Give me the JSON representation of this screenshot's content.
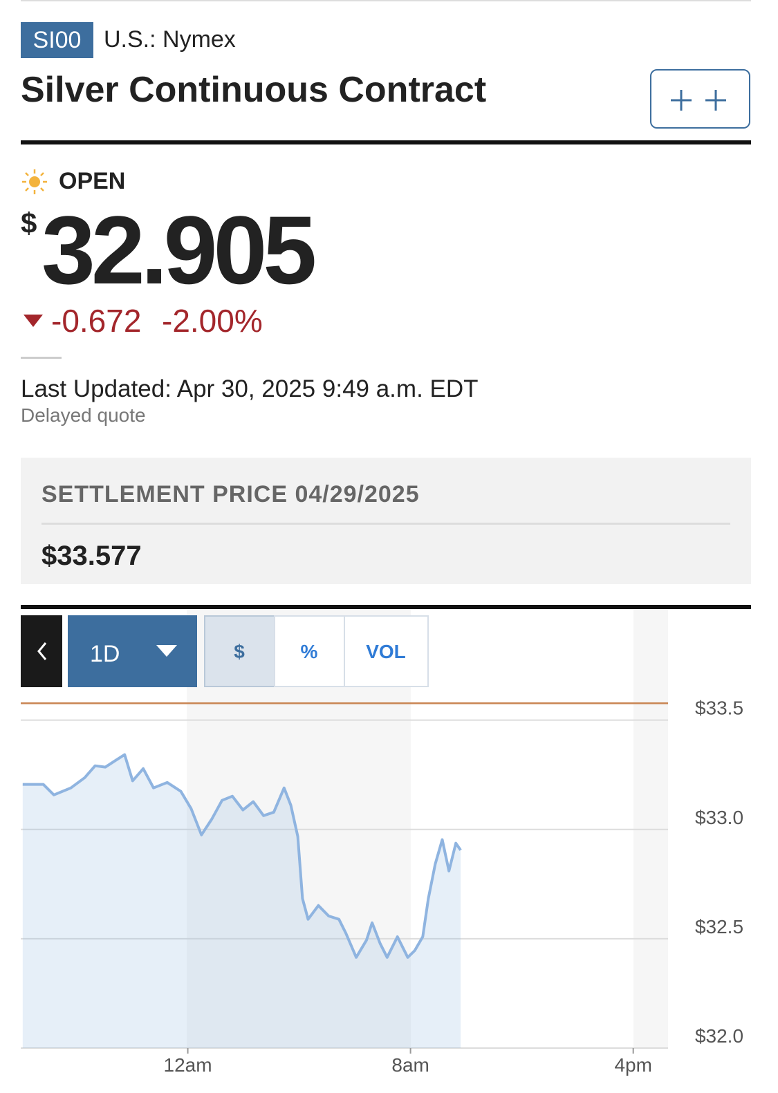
{
  "header": {
    "symbol": "SI00",
    "exchange": "U.S.: Nymex",
    "title": "Silver Continuous Contract"
  },
  "quote": {
    "status": "OPEN",
    "currency": "$",
    "price": "32.905",
    "change": "-0.672",
    "change_percent": "-2.00%",
    "last_updated": "Last Updated: Apr 30, 2025 9:49 a.m. EDT",
    "delay_note": "Delayed quote"
  },
  "settlement": {
    "label": "SETTLEMENT PRICE 04/29/2025",
    "value": "$33.577"
  },
  "controls": {
    "range": "1D",
    "tabs": [
      "$",
      "%",
      "VOL"
    ]
  },
  "chart_data": {
    "type": "area",
    "x": [
      -5.93,
      -5.19,
      -4.81,
      -4.2,
      -3.7,
      -3.33,
      -2.96,
      -2.59,
      -2.27,
      -1.98,
      -1.6,
      -1.23,
      -0.74,
      -0.25,
      0.12,
      0.49,
      0.86,
      1.23,
      1.6,
      1.98,
      2.35,
      2.72,
      3.09,
      3.46,
      3.7,
      3.95,
      4.12,
      4.32,
      4.69,
      5.06,
      5.43,
      5.68,
      6.05,
      6.42,
      6.62,
      6.91,
      7.16,
      7.53,
      7.9,
      8.15,
      8.44,
      8.64,
      8.89,
      9.14,
      9.38,
      9.63,
      9.8
    ],
    "series": [
      {
        "color": "#8fb4e0",
        "values": [
          33.206,
          33.206,
          33.158,
          33.19,
          33.237,
          33.291,
          33.285,
          33.316,
          33.342,
          33.222,
          33.278,
          33.19,
          33.215,
          33.174,
          33.095,
          32.975,
          33.047,
          33.133,
          33.152,
          33.089,
          33.127,
          33.063,
          33.079,
          33.19,
          33.111,
          32.968,
          32.684,
          32.589,
          32.652,
          32.604,
          32.589,
          32.525,
          32.415,
          32.494,
          32.573,
          32.478,
          32.415,
          32.509,
          32.415,
          32.446,
          32.509,
          32.684,
          32.842,
          32.953,
          32.81,
          32.937,
          32.905
        ]
      }
    ],
    "reference_line": 33.577,
    "xlim": [
      -6,
      17.25
    ],
    "xticks": [
      {
        "value": 0,
        "label": "12am"
      },
      {
        "value": 8,
        "label": "8am"
      },
      {
        "value": 16,
        "label": "4pm"
      }
    ],
    "ylim": [
      32.0,
      33.6
    ],
    "yticks": [
      {
        "value": 32.0,
        "label": "$32.0"
      },
      {
        "value": 32.5,
        "label": "$32.5"
      },
      {
        "value": 33.0,
        "label": "$33.0"
      },
      {
        "value": 33.5,
        "label": "$33.5"
      }
    ],
    "grid": true
  }
}
